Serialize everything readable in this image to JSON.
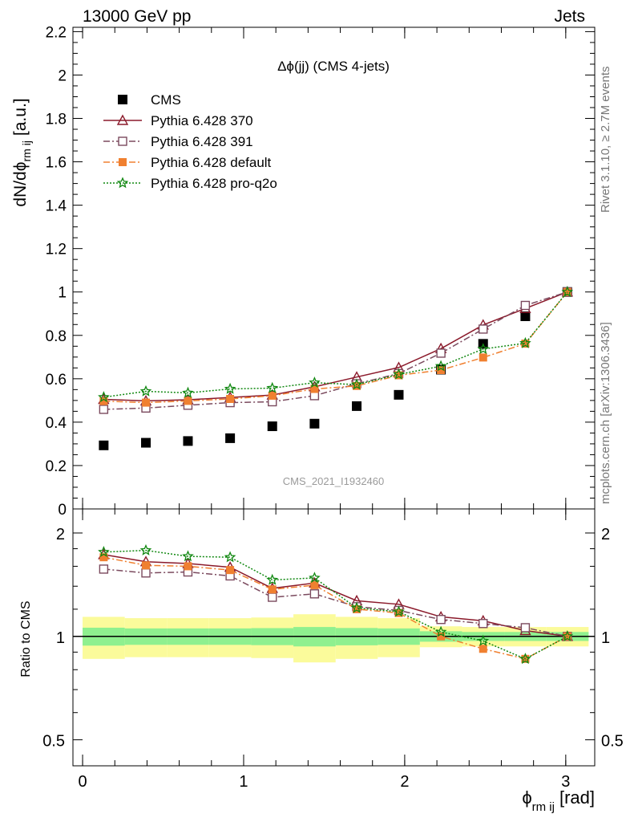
{
  "header": {
    "left": "13000 GeV pp",
    "right": "Jets"
  },
  "side_labels": {
    "upper": "Rivet 3.1.10, ≥ 2.7M events",
    "lower": "mcplots.cern.ch [arXiv:1306.3436]"
  },
  "watermark": "CMS_2021_I1932460",
  "chart_data": [
    {
      "type": "line",
      "title": "Δϕ(jj) (CMS 4-jets)",
      "ylabel": "dN/dϕ",
      "ylabel_sub": "rm ij",
      "ylabel_unit": "[a.u.]",
      "xlim": [
        -0.06,
        3.18
      ],
      "ylim": [
        0,
        2.22
      ],
      "xticks": [
        0,
        1,
        2,
        3
      ],
      "yticks": [
        0,
        0.2,
        0.4,
        0.6,
        0.8,
        1,
        1.2,
        1.4,
        1.6,
        1.8,
        2,
        2.2
      ],
      "ytick_labels": [
        "0",
        "0.2",
        "0.4",
        "0.6",
        "0.8",
        "1",
        "1.2",
        "1.4",
        "1.6",
        "1.8",
        "2",
        "2.2"
      ],
      "legend_position": "top-left",
      "x": [
        0.131,
        0.393,
        0.654,
        0.916,
        1.178,
        1.44,
        1.702,
        1.963,
        2.225,
        2.487,
        2.749,
        3.01
      ],
      "x_edges": [
        0,
        0.262,
        0.524,
        0.785,
        1.047,
        1.309,
        1.571,
        1.833,
        2.094,
        2.356,
        2.618,
        2.88,
        3.142
      ],
      "series": [
        {
          "name": "CMS",
          "style": "data",
          "color": "#000000",
          "marker": "square-filled",
          "values": [
            0.293,
            0.305,
            0.313,
            0.326,
            0.381,
            0.393,
            0.474,
            0.526,
            0.642,
            0.761,
            0.888,
            1.0
          ]
        },
        {
          "name": "Pythia 6.428 370",
          "style": "solid",
          "color": "#8b1a2b",
          "marker": "triangle-open",
          "values": [
            0.505,
            0.498,
            0.503,
            0.514,
            0.525,
            0.563,
            0.608,
            0.652,
            0.739,
            0.848,
            0.924,
            1.0
          ]
        },
        {
          "name": "Pythia 6.428 391",
          "style": "dashdot",
          "color": "#7b4a5e",
          "marker": "square-open",
          "values": [
            0.459,
            0.465,
            0.478,
            0.49,
            0.494,
            0.522,
            0.577,
            0.624,
            0.718,
            0.829,
            0.938,
            1.0
          ]
        },
        {
          "name": "Pythia 6.428 default",
          "style": "dashdot",
          "color": "#f08030",
          "marker": "square-filled",
          "values": [
            0.497,
            0.49,
            0.498,
            0.507,
            0.522,
            0.553,
            0.567,
            0.616,
            0.64,
            0.698,
            0.762,
            1.0
          ]
        },
        {
          "name": "Pythia 6.428 pro-q2o",
          "style": "dotted",
          "color": "#118811",
          "marker": "star-open",
          "values": [
            0.515,
            0.542,
            0.535,
            0.553,
            0.557,
            0.582,
            0.573,
            0.62,
            0.658,
            0.737,
            0.764,
            1.0
          ]
        }
      ]
    },
    {
      "type": "line",
      "ylabel": "Ratio to CMS",
      "xlabel": "ϕ",
      "xlabel_sub": "rm ij",
      "xlabel_unit": "[rad]",
      "y_scale": "log",
      "ylim": [
        0.42,
        2.35
      ],
      "yticks": [
        0.5,
        1,
        2
      ],
      "ytick_labels": [
        "0.5",
        "1",
        "2"
      ],
      "xticks": [
        0,
        1,
        2,
        3
      ],
      "xtick_labels": [
        "0",
        "1",
        "2",
        "3"
      ],
      "error_bands": {
        "inner_color": "#8ff08f",
        "outer_color": "#fbfb9b",
        "inner_halfwidth": [
          0.06,
          0.055,
          0.055,
          0.055,
          0.057,
          0.065,
          0.058,
          0.055,
          0.035,
          0.03,
          0.03,
          0.03
        ],
        "outer_halfwidth": [
          0.14,
          0.13,
          0.13,
          0.13,
          0.135,
          0.16,
          0.14,
          0.13,
          0.07,
          0.065,
          0.065,
          0.065
        ]
      },
      "series": [
        {
          "name": "Pythia 6.428 370",
          "values": [
            1.73,
            1.65,
            1.63,
            1.59,
            1.38,
            1.43,
            1.27,
            1.24,
            1.14,
            1.11,
            1.04,
            1.0
          ]
        },
        {
          "name": "Pythia 6.428 391",
          "values": [
            1.57,
            1.53,
            1.54,
            1.5,
            1.3,
            1.33,
            1.22,
            1.19,
            1.12,
            1.09,
            1.06,
            1.0
          ]
        },
        {
          "name": "Pythia 6.428 default",
          "values": [
            1.7,
            1.61,
            1.6,
            1.56,
            1.37,
            1.41,
            1.2,
            1.17,
            1.0,
            0.92,
            0.86,
            1.0
          ]
        },
        {
          "name": "Pythia 6.428 pro-q2o",
          "values": [
            1.76,
            1.78,
            1.71,
            1.7,
            1.46,
            1.48,
            1.21,
            1.18,
            1.03,
            0.97,
            0.86,
            1.0
          ]
        }
      ]
    }
  ]
}
